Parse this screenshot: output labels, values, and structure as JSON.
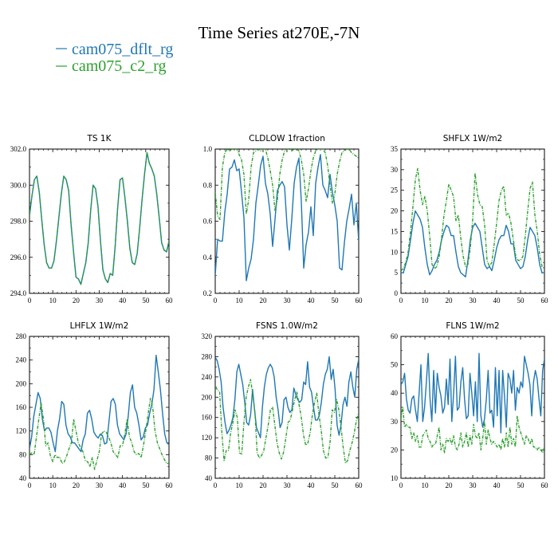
{
  "figure": {
    "title": "Time Series at270E,-7N",
    "legend": [
      {
        "label": "cam075_dflt_rg",
        "color": "#1f77b4",
        "dash": "solid"
      },
      {
        "label": "cam075_c2_rg",
        "color": "#2ca02c",
        "dash": "dashed"
      }
    ]
  },
  "chart_data": [
    {
      "type": "line",
      "title": "TS   1K",
      "xlim": [
        0,
        60
      ],
      "ylim": [
        294.0,
        302.0
      ],
      "xticks": [
        0,
        10,
        20,
        30,
        40,
        50,
        60
      ],
      "yticks": [
        294.0,
        296.0,
        298.0,
        300.0,
        302.0
      ],
      "ytick_labels": [
        "294.0",
        "296.0",
        "298.0",
        "300.0",
        "302.0"
      ],
      "series": [
        {
          "name": "cam075_dflt_rg",
          "color": "#1f77b4",
          "dash": "solid",
          "y": [
            298.3,
            299.4,
            300.3,
            300.5,
            299.6,
            298.1,
            296.7,
            295.7,
            295.4,
            295.4,
            295.8,
            296.9,
            298.2,
            299.5,
            300.5,
            300.3,
            299.7,
            297.8,
            296.3,
            294.9,
            294.8,
            294.5,
            295.1,
            295.7,
            296.8,
            298.6,
            300.0,
            299.8,
            298.8,
            296.9,
            295.3,
            294.8,
            294.6,
            295.1,
            295.0,
            296.6,
            298.7,
            300.3,
            300.4,
            299.3,
            298.0,
            296.5,
            295.7,
            295.6,
            296.2,
            297.6,
            299.2,
            300.6,
            301.8,
            301.2,
            300.9,
            300.5,
            299.5,
            298.2,
            296.8,
            296.4,
            296.3,
            296.9
          ]
        },
        {
          "name": "cam075_c2_rg",
          "color": "#2ca02c",
          "dash": "dashed",
          "y": [
            298.3,
            299.4,
            300.3,
            300.5,
            299.6,
            298.1,
            296.7,
            295.7,
            295.4,
            295.4,
            295.8,
            296.9,
            298.2,
            299.5,
            300.5,
            300.3,
            299.7,
            297.8,
            296.3,
            294.9,
            294.8,
            294.5,
            295.1,
            295.7,
            296.8,
            298.6,
            300.0,
            299.8,
            298.8,
            296.9,
            295.3,
            294.8,
            294.6,
            295.1,
            295.0,
            296.6,
            298.7,
            300.3,
            300.4,
            299.3,
            298.0,
            296.5,
            295.7,
            295.6,
            296.2,
            297.6,
            299.2,
            300.6,
            301.8,
            301.2,
            300.9,
            300.5,
            299.5,
            298.2,
            296.8,
            296.4,
            296.3,
            296.9
          ]
        }
      ]
    },
    {
      "type": "line",
      "title": "CLDLOW   1fraction",
      "xlim": [
        0,
        60
      ],
      "ylim": [
        0.2,
        1.0
      ],
      "xticks": [
        0,
        10,
        20,
        30,
        40,
        50,
        60
      ],
      "yticks": [
        0.2,
        0.4,
        0.6,
        0.8,
        1.0
      ],
      "ytick_labels": [
        "0.2",
        "0.4",
        "0.6",
        "0.8",
        "1.0"
      ],
      "series": [
        {
          "name": "cam075_dflt_rg",
          "color": "#1f77b4",
          "dash": "solid",
          "y": [
            0.3,
            0.5,
            0.49,
            0.49,
            0.65,
            0.75,
            0.89,
            0.9,
            0.94,
            0.88,
            0.89,
            0.76,
            0.62,
            0.27,
            0.34,
            0.39,
            0.5,
            0.7,
            0.8,
            0.91,
            0.96,
            0.81,
            0.75,
            0.64,
            0.46,
            0.61,
            0.77,
            0.8,
            0.82,
            0.79,
            0.58,
            0.44,
            0.61,
            0.81,
            0.9,
            0.95,
            0.71,
            0.34,
            0.47,
            0.54,
            0.68,
            0.52,
            0.81,
            0.9,
            0.97,
            0.8,
            0.77,
            0.73,
            0.86,
            0.76,
            0.69,
            0.6,
            0.34,
            0.33,
            0.48,
            0.6,
            0.67,
            0.75,
            0.58,
            0.7,
            0.49
          ]
        },
        {
          "name": "cam075_c2_rg",
          "color": "#2ca02c",
          "dash": "dashed",
          "y": [
            0.76,
            0.63,
            0.61,
            0.9,
            0.98,
            1.0,
            0.99,
            1.0,
            1.0,
            1.0,
            0.97,
            0.94,
            0.86,
            0.64,
            0.72,
            0.9,
            0.98,
            0.99,
            1.0,
            0.99,
            1.0,
            1.0,
            0.95,
            0.88,
            0.8,
            0.66,
            0.72,
            0.86,
            0.94,
            0.99,
            1.0,
            1.0,
            0.99,
            1.0,
            1.0,
            0.99,
            0.94,
            0.86,
            0.71,
            0.78,
            0.88,
            0.95,
            0.99,
            1.0,
            1.0,
            1.0,
            0.98,
            0.91,
            0.8,
            0.7,
            0.75,
            0.86,
            0.93,
            0.98,
            0.99,
            1.0,
            1.0,
            0.98,
            0.97,
            0.96,
            0.95
          ]
        }
      ]
    },
    {
      "type": "line",
      "title": "SHFLX   1W/m2",
      "xlim": [
        0,
        60
      ],
      "ylim": [
        0,
        35
      ],
      "xticks": [
        0,
        10,
        20,
        30,
        40,
        50,
        60
      ],
      "yticks": [
        0,
        5,
        10,
        15,
        20,
        25,
        30,
        35
      ],
      "ytick_labels": [
        "0",
        "5",
        "10",
        "15",
        "20",
        "25",
        "30",
        "35"
      ],
      "series": [
        {
          "name": "cam075_dflt_rg",
          "color": "#1f77b4",
          "dash": "solid",
          "y": [
            5.0,
            5.0,
            7.0,
            9.0,
            13.0,
            17.0,
            20.0,
            19.0,
            18.0,
            16.0,
            11.0,
            7.0,
            4.5,
            5.5,
            7.0,
            8.0,
            10.0,
            13.0,
            15.0,
            16.5,
            16.0,
            14.0,
            14.0,
            10.0,
            6.5,
            5.0,
            4.5,
            4.0,
            8.0,
            13.0,
            16.0,
            17.0,
            16.0,
            15.0,
            11.0,
            7.0,
            6.0,
            6.5,
            5.5,
            8.0,
            11.0,
            13.0,
            14.0,
            14.0,
            16.5,
            15.0,
            12.0,
            12.0,
            8.0,
            7.0,
            6.0,
            6.5,
            9.0,
            13.0,
            16.0,
            15.0,
            14.0,
            11.0,
            7.0,
            5.0,
            5.0
          ]
        },
        {
          "name": "cam075_c2_rg",
          "color": "#2ca02c",
          "dash": "dashed",
          "y": [
            5.5,
            6.0,
            7.5,
            10.0,
            15.0,
            21.0,
            27.5,
            30.3,
            25.0,
            21.5,
            23.5,
            20.0,
            14.0,
            7.0,
            6.0,
            6.5,
            9.0,
            13.5,
            19.0,
            22.5,
            26.5,
            25.0,
            23.5,
            17.5,
            19.0,
            13.5,
            9.0,
            6.5,
            7.0,
            11.0,
            18.0,
            29.2,
            24.0,
            21.5,
            21.0,
            16.5,
            8.0,
            6.5,
            7.5,
            12.0,
            17.0,
            22.5,
            25.0,
            26.0,
            19.0,
            19.5,
            17.0,
            13.0,
            9.0,
            8.0,
            8.0,
            9.0,
            14.0,
            20.0,
            25.5,
            27.0,
            19.0,
            15.0,
            9.5,
            6.5,
            6.0
          ]
        }
      ]
    },
    {
      "type": "line",
      "title": "LHFLX   1W/m2",
      "xlim": [
        0,
        60
      ],
      "ylim": [
        40,
        280
      ],
      "xticks": [
        0,
        10,
        20,
        30,
        40,
        50,
        60
      ],
      "yticks": [
        40,
        80,
        120,
        160,
        200,
        240,
        280
      ],
      "ytick_labels": [
        "40",
        "80",
        "120",
        "160",
        "200",
        "240",
        "280"
      ],
      "series": [
        {
          "name": "cam075_dflt_rg",
          "color": "#1f77b4",
          "dash": "solid",
          "y": [
            90,
            110,
            145,
            165,
            185,
            175,
            140,
            120,
            125,
            125,
            118,
            100,
            85,
            120,
            140,
            170,
            165,
            130,
            115,
            110,
            100,
            100,
            95,
            90,
            85,
            105,
            115,
            150,
            155,
            140,
            118,
            112,
            108,
            115,
            112,
            98,
            100,
            135,
            170,
            175,
            165,
            130,
            115,
            110,
            105,
            115,
            145,
            185,
            198,
            160,
            150,
            130,
            105,
            110,
            125,
            130,
            150,
            165,
            190,
            248,
            220,
            190,
            150,
            115,
            100,
            97
          ]
        },
        {
          "name": "cam075_c2_rg",
          "color": "#2ca02c",
          "dash": "dashed",
          "y": [
            80,
            83,
            80,
            110,
            140,
            167,
            140,
            95,
            100,
            78,
            68,
            80,
            75,
            76,
            65,
            68,
            78,
            90,
            100,
            140,
            120,
            100,
            92,
            85,
            70,
            68,
            60,
            75,
            55,
            70,
            85,
            115,
            120,
            118,
            110,
            100,
            85,
            80,
            75,
            95,
            95,
            115,
            140,
            110,
            100,
            85,
            80,
            82,
            75,
            95,
            120,
            148,
            175,
            160,
            120,
            100,
            90,
            80,
            72,
            65,
            65
          ]
        }
      ]
    },
    {
      "type": "line",
      "title": "FSNS   1.0W/m2",
      "xlim": [
        0,
        60
      ],
      "ylim": [
        40,
        320
      ],
      "xticks": [
        0,
        10,
        20,
        30,
        40,
        50,
        60
      ],
      "yticks": [
        40,
        80,
        120,
        160,
        200,
        240,
        280,
        320
      ],
      "ytick_labels": [
        "40",
        "80",
        "120",
        "160",
        "200",
        "240",
        "280",
        "320"
      ],
      "series": [
        {
          "name": "cam075_dflt_rg",
          "color": "#1f77b4",
          "dash": "solid",
          "y": [
            279,
            272,
            255,
            230,
            180,
            150,
            128,
            135,
            145,
            160,
            195,
            250,
            265,
            245,
            225,
            190,
            150,
            145,
            165,
            215,
            175,
            140,
            130,
            120,
            180,
            220,
            245,
            258,
            265,
            258,
            240,
            200,
            175,
            140,
            150,
            195,
            200,
            180,
            170,
            175,
            218,
            205,
            195,
            190,
            195,
            230,
            225,
            270,
            220,
            210,
            180,
            155,
            155,
            165,
            190,
            225,
            245,
            255,
            280,
            235,
            255,
            215,
            145,
            125,
            145,
            185,
            200,
            182,
            230,
            250,
            220,
            200,
            255,
            275
          ]
        },
        {
          "name": "cam075_c2_rg",
          "color": "#2ca02c",
          "dash": "dashed",
          "y": [
            220,
            215,
            210,
            130,
            75,
            95,
            95,
            130,
            150,
            175,
            160,
            90,
            88,
            150,
            200,
            220,
            235,
            205,
            170,
            90,
            80,
            85,
            95,
            120,
            145,
            175,
            180,
            145,
            110,
            90,
            78,
            92,
            120,
            150,
            155,
            175,
            195,
            210,
            185,
            160,
            125,
            105,
            110,
            130,
            165,
            190,
            208,
            165,
            135,
            95,
            80,
            80,
            110,
            175,
            170,
            195,
            175,
            140,
            100,
            70,
            75,
            95,
            110,
            130,
            155,
            170
          ]
        }
      ]
    },
    {
      "type": "line",
      "title": "FLNS   1W/m2",
      "xlim": [
        0,
        60
      ],
      "ylim": [
        10,
        60
      ],
      "xticks": [
        0,
        10,
        20,
        30,
        40,
        50,
        60
      ],
      "yticks": [
        10,
        20,
        30,
        40,
        50,
        60
      ],
      "ytick_labels": [
        "10",
        "20",
        "30",
        "40",
        "50",
        "60"
      ],
      "series": [
        {
          "name": "cam075_dflt_rg",
          "color": "#1f77b4",
          "dash": "solid",
          "y": [
            43,
            44,
            47,
            38,
            34,
            33,
            38,
            39,
            34,
            30,
            40,
            50,
            30,
            35,
            44,
            54,
            38,
            30,
            48,
            33,
            47,
            42,
            39,
            33,
            35,
            45,
            36,
            52,
            30,
            40,
            53,
            34,
            35,
            44,
            49,
            38,
            31,
            32,
            47,
            40,
            32,
            44,
            30,
            54,
            32,
            28,
            31,
            38,
            48,
            33,
            34,
            28,
            49,
            32,
            48,
            26,
            48,
            39,
            28,
            47,
            45,
            40,
            48,
            34,
            42,
            40,
            44,
            42,
            53,
            50,
            47,
            43,
            32,
            44,
            48,
            45,
            38,
            32,
            48,
            52
          ]
        },
        {
          "name": "cam075_c2_rg",
          "color": "#2ca02c",
          "dash": "dashed",
          "y": [
            31,
            35,
            28,
            29,
            28,
            28,
            24,
            26,
            23,
            25,
            21,
            21,
            25,
            26,
            27,
            24,
            23,
            21,
            22,
            22,
            25,
            28,
            20,
            22,
            19,
            24,
            23,
            24,
            22,
            25,
            21,
            20,
            22,
            26,
            21,
            23,
            26,
            21,
            25,
            22,
            29,
            25,
            24,
            26,
            20,
            24,
            30,
            22,
            27,
            24,
            22,
            23,
            22,
            21,
            22,
            20,
            24,
            21,
            26,
            21,
            28,
            22,
            24,
            21,
            32,
            28,
            26,
            24,
            22,
            25,
            24,
            22,
            24,
            21,
            21,
            20,
            21,
            20,
            19,
            21
          ]
        }
      ]
    }
  ]
}
